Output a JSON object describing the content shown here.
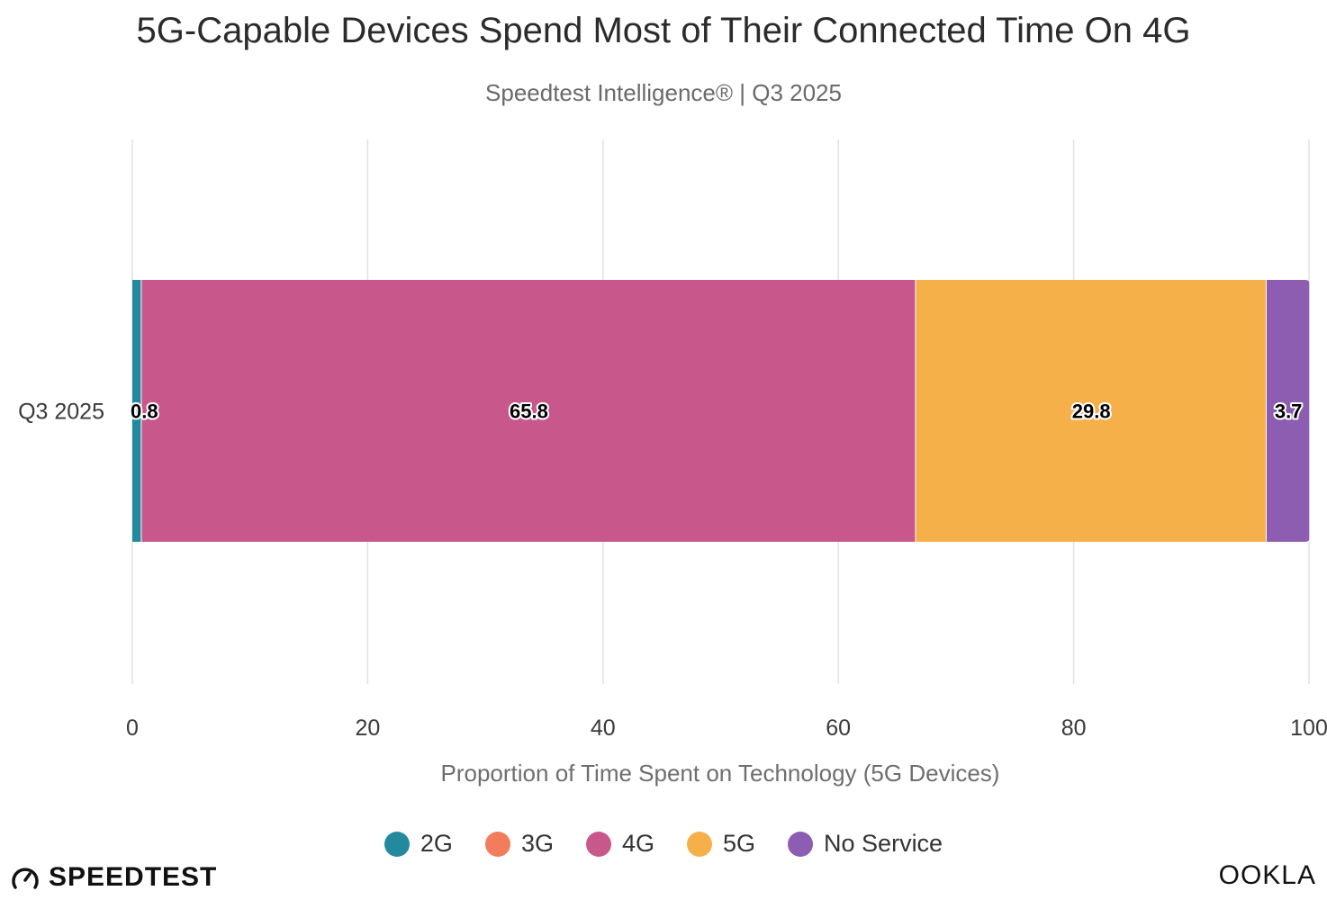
{
  "chart_data": {
    "type": "bar",
    "orientation": "horizontal",
    "stacked": true,
    "title": "5G-Capable Devices Spend Most of Their Connected Time On 4G",
    "subtitle": "Speedtest Intelligence® | Q3 2025",
    "xlabel": "Proportion of Time Spent on Technology (5G Devices)",
    "ylabel": "",
    "categories": [
      "Q3 2025"
    ],
    "series": [
      {
        "name": "2G",
        "color": "#238a9d",
        "values": [
          0.8
        ],
        "label": "0.8"
      },
      {
        "name": "3G",
        "color": "#f27d5c",
        "values": [
          0
        ],
        "label": ""
      },
      {
        "name": "4G",
        "color": "#c8578b",
        "values": [
          65.8
        ],
        "label": "65.8"
      },
      {
        "name": "5G",
        "color": "#f6b04a",
        "values": [
          29.8
        ],
        "label": "29.8"
      },
      {
        "name": "No Service",
        "color": "#8c5db0",
        "values": [
          3.7
        ],
        "label": "3.7"
      }
    ],
    "xlim": [
      0,
      100
    ],
    "xticks": [
      0,
      20,
      40,
      60,
      80,
      100
    ],
    "xtick_labels": [
      "0",
      "20",
      "40",
      "60",
      "80",
      "100"
    ],
    "grid": true,
    "legend_position": "bottom"
  },
  "branding": {
    "left_logo": "SPEEDTEST",
    "right_logo": "OOKLA"
  }
}
